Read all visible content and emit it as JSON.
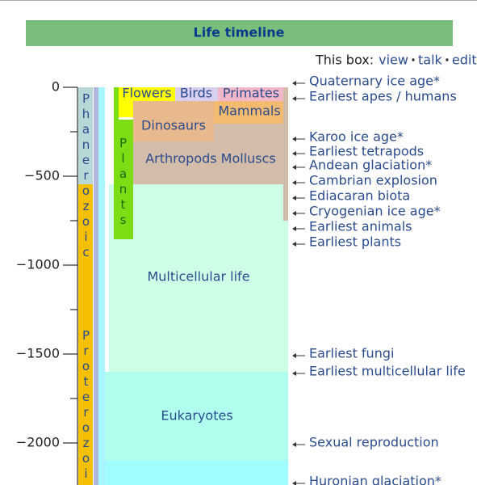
{
  "header": {
    "title": "Life timeline",
    "tools": {
      "prefix": "This box:",
      "links": [
        "view",
        "talk",
        "edit"
      ],
      "separator": "·"
    }
  },
  "axis": {
    "ticks": [
      0,
      {
        "value": -500,
        "label": "−500"
      },
      {
        "value": -1000,
        "label": "−1000"
      },
      {
        "value": -1500,
        "label": "−1500"
      },
      {
        "value": -2000,
        "label": "−2000"
      }
    ],
    "minor_ticks": [
      -250,
      -750,
      -1250,
      -1750,
      -2250
    ],
    "range": [
      0,
      -2236
    ]
  },
  "eons": [
    "Phanerozoic",
    "Proterozoic"
  ],
  "blocks": [
    "Flowers",
    "Birds",
    "Primates",
    "Mammals",
    "Dinosaurs",
    "Plants",
    "Arthropods Molluscs",
    "Multicellular life",
    "Eukaryotes"
  ],
  "events": [
    "Quaternary ice age*",
    "Earliest apes / humans",
    "Karoo ice age*",
    "Earliest tetrapods",
    "Andean glaciation*",
    "Cambrian explosion",
    "Ediacaran biota",
    "Cryogenian ice age*",
    "Earliest animals",
    "Earliest plants",
    "Earliest fungi",
    "Earliest multicellular life",
    "Sexual reproduction",
    "Huronian glaciation*"
  ]
}
